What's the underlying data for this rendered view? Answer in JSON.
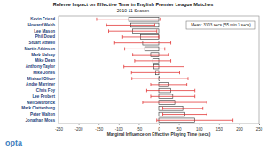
{
  "chart_data": {
    "type": "bar",
    "orientation": "horizontal",
    "title": "Referee Impact on Effective Time in English Premier League Matches",
    "subtitle": "2010-11 Season",
    "x_label": "Marginal Influence on Effective Playing Time (secs)",
    "categories": [
      "Kevin Friend",
      "Howard Webb",
      "Lee Mason",
      "Phil Dowd",
      "Stuart Attwell",
      "Martin Atkinson",
      "Mark Halsey",
      "Mike Dean",
      "Anthony Taylor",
      "Mike Jones",
      "Michael Oliver",
      "Andre Marriner",
      "Chris Foy",
      "Lee Probert",
      "Neil Swarbrick",
      "Mark Clattenburg",
      "Peter Walton",
      "Jonathan Moss"
    ],
    "values": [
      -75,
      -70,
      -65,
      -45,
      -40,
      -35,
      -20,
      -15,
      -12,
      -8,
      3,
      25,
      30,
      35,
      40,
      60,
      65,
      90
    ],
    "errors": [
      80,
      60,
      60,
      45,
      70,
      50,
      45,
      45,
      75,
      60,
      70,
      45,
      60,
      55,
      80,
      50,
      55,
      95
    ],
    "color": "#ffffff",
    "error_color": "#e02020",
    "xlim": [
      -250,
      250
    ],
    "xticks": [
      -250,
      -200,
      -150,
      -100,
      -50,
      0,
      50,
      100,
      150,
      200,
      250
    ],
    "grid": false,
    "annotations": [
      "Mean: 3303 secs (55 min 3 secs)",
      "opta"
    ]
  }
}
